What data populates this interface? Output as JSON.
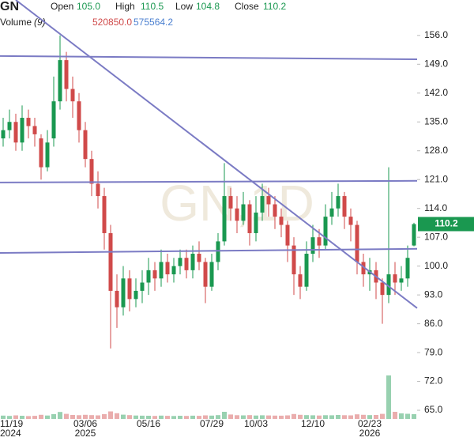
{
  "chart_data": {
    "type": "candlestick",
    "symbol": "GN",
    "watermark": "GN,1D",
    "header": {
      "open_label": "Open",
      "open": {
        "value": 105,
        "label": "105.0"
      },
      "high_label": "High",
      "high": {
        "value": 110.5,
        "label": "110.5"
      },
      "low_label": "Low",
      "low": {
        "value": 104.8,
        "label": "104.8"
      },
      "close_label": "Close",
      "close": {
        "value": 110.2,
        "label": "110.2"
      },
      "value_color": "#1a9850"
    },
    "volume_header": {
      "label": "Volume",
      "period": "(9)",
      "values": [
        {
          "value": 520850,
          "label": "520850.0",
          "color": "#d04a4a"
        },
        {
          "value": 575564.2,
          "label": "575564.2",
          "color": "#4a7fd0"
        }
      ]
    },
    "categories": [
      null,
      "11/19",
      null,
      null,
      null,
      null,
      null,
      null,
      null,
      null,
      null,
      null,
      null,
      "03/06",
      null,
      null,
      null,
      null,
      null,
      null,
      null,
      null,
      null,
      "05/16",
      null,
      null,
      null,
      null,
      null,
      null,
      null,
      null,
      null,
      "07/29",
      null,
      null,
      null,
      null,
      null,
      null,
      "10/03",
      null,
      null,
      null,
      null,
      null,
      null,
      null,
      null,
      "12/10",
      null,
      null,
      null,
      null,
      null,
      null,
      null,
      null,
      "02/23",
      null,
      null,
      null,
      null,
      null,
      null,
      null
    ],
    "category_years": [
      null,
      "2024",
      null,
      null,
      null,
      null,
      null,
      null,
      null,
      null,
      null,
      null,
      null,
      "2025",
      null,
      null,
      null,
      null,
      null,
      null,
      null,
      null,
      null,
      null,
      null,
      null,
      null,
      null,
      null,
      null,
      null,
      null,
      null,
      null,
      null,
      null,
      null,
      null,
      null,
      null,
      null,
      null,
      null,
      null,
      null,
      null,
      null,
      null,
      null,
      null,
      null,
      null,
      null,
      null,
      null,
      null,
      null,
      null,
      "2026",
      null,
      null,
      null,
      null,
      null,
      null,
      null
    ],
    "open": [
      131,
      133,
      135,
      130,
      136,
      134,
      131,
      124,
      131,
      140,
      150,
      143,
      140,
      133,
      126,
      120,
      117,
      108,
      94,
      90,
      97,
      92,
      94,
      96,
      99,
      97,
      101,
      98,
      100,
      102,
      99,
      103,
      101,
      95,
      101,
      106,
      117,
      114,
      111,
      115,
      108,
      113,
      117,
      115,
      112,
      110,
      105,
      98,
      95,
      103,
      107,
      105,
      112,
      114,
      117,
      112,
      110,
      101,
      98,
      99,
      96,
      93,
      98,
      96,
      97,
      105
    ],
    "high": [
      136,
      138,
      137,
      139,
      138,
      136,
      132,
      133,
      146,
      156,
      152,
      146,
      142,
      135,
      128,
      123,
      119,
      110,
      98,
      100,
      99,
      97,
      99,
      102,
      101,
      104,
      103,
      102,
      104,
      104,
      105,
      106,
      102,
      103,
      108,
      125,
      119,
      117,
      118,
      116,
      117,
      120,
      119,
      117,
      114,
      111,
      107,
      100,
      106,
      110,
      109,
      115,
      118,
      120,
      118,
      114,
      111,
      103,
      102,
      101,
      97,
      124,
      101,
      100,
      105,
      110.5
    ],
    "low": [
      129,
      131,
      128,
      128,
      131,
      129,
      121,
      123,
      129,
      138,
      140,
      136,
      130,
      124,
      117,
      114,
      104,
      80,
      85,
      88,
      89,
      90,
      91,
      93,
      94,
      95,
      96,
      96,
      98,
      97,
      97,
      99,
      91,
      94,
      99,
      105,
      111,
      108,
      110,
      105,
      106,
      111,
      112,
      109,
      107,
      101,
      93,
      92,
      94,
      101,
      102,
      104,
      110,
      112,
      109,
      106,
      98,
      95,
      94,
      92,
      86,
      91,
      93,
      94,
      95,
      104.8
    ],
    "close": [
      133,
      135,
      130,
      136,
      134,
      132,
      124,
      130,
      140,
      150,
      143,
      140,
      133,
      126,
      120,
      117,
      108,
      94,
      90,
      97,
      92,
      94,
      96,
      99,
      97,
      101,
      98,
      100,
      102,
      99,
      103,
      101,
      95,
      101,
      106,
      117,
      114,
      111,
      115,
      108,
      113,
      117,
      115,
      112,
      110,
      105,
      98,
      95,
      103,
      107,
      105,
      112,
      114,
      117,
      112,
      110,
      101,
      98,
      99,
      96,
      93,
      98,
      96,
      97,
      102,
      110.2
    ],
    "volume": [
      420000,
      380000,
      450000,
      400000,
      360000,
      390000,
      520000,
      430000,
      610000,
      880000,
      640000,
      500000,
      470000,
      520000,
      480000,
      450000,
      600000,
      950000,
      720000,
      540000,
      480000,
      430000,
      410000,
      400000,
      380000,
      420000,
      390000,
      370000,
      400000,
      380000,
      410000,
      390000,
      450000,
      420000,
      480000,
      900000,
      560000,
      470000,
      450000,
      480000,
      430000,
      460000,
      440000,
      420000,
      410000,
      450000,
      620000,
      520000,
      480000,
      460000,
      430000,
      470000,
      460000,
      500000,
      470000,
      450000,
      580000,
      520000,
      480000,
      500000,
      640000,
      5500000,
      900000,
      700000,
      650000,
      600000
    ],
    "up_color": "#1a9850",
    "down_color": "#d04a4a",
    "last_price": 110.2,
    "ylim": [
      62.9,
      164.6
    ],
    "yticks": [
      {
        "value": 65,
        "label": "65.0"
      },
      {
        "value": 72,
        "label": "72.0"
      },
      {
        "value": 79,
        "label": "79.0"
      },
      {
        "value": 86,
        "label": "86.0"
      },
      {
        "value": 93,
        "label": "93.0"
      },
      {
        "value": 100,
        "label": "100.0"
      },
      {
        "value": 107,
        "label": "107.0"
      },
      {
        "value": 114,
        "label": "114.0"
      },
      {
        "value": 121,
        "label": "121.0"
      },
      {
        "value": 128,
        "label": "128.0"
      },
      {
        "value": 135,
        "label": "135.0"
      },
      {
        "value": 142,
        "label": "142.0"
      },
      {
        "value": 149,
        "label": "149.0"
      },
      {
        "value": 156,
        "label": "156.0"
      }
    ],
    "trend_lines": [
      {
        "x": [
          -0.5,
          65.5
        ],
        "y": [
          151.0,
          150.2
        ]
      },
      {
        "x": [
          -0.5,
          65.5
        ],
        "y": [
          120.3,
          120.7
        ]
      },
      {
        "x": [
          -0.5,
          65.5
        ],
        "y": [
          103.2,
          104.2
        ]
      },
      {
        "x": [
          2,
          65.5
        ],
        "y": [
          164.6,
          89.8
        ]
      }
    ],
    "trend_color": "#7b7bc4"
  }
}
